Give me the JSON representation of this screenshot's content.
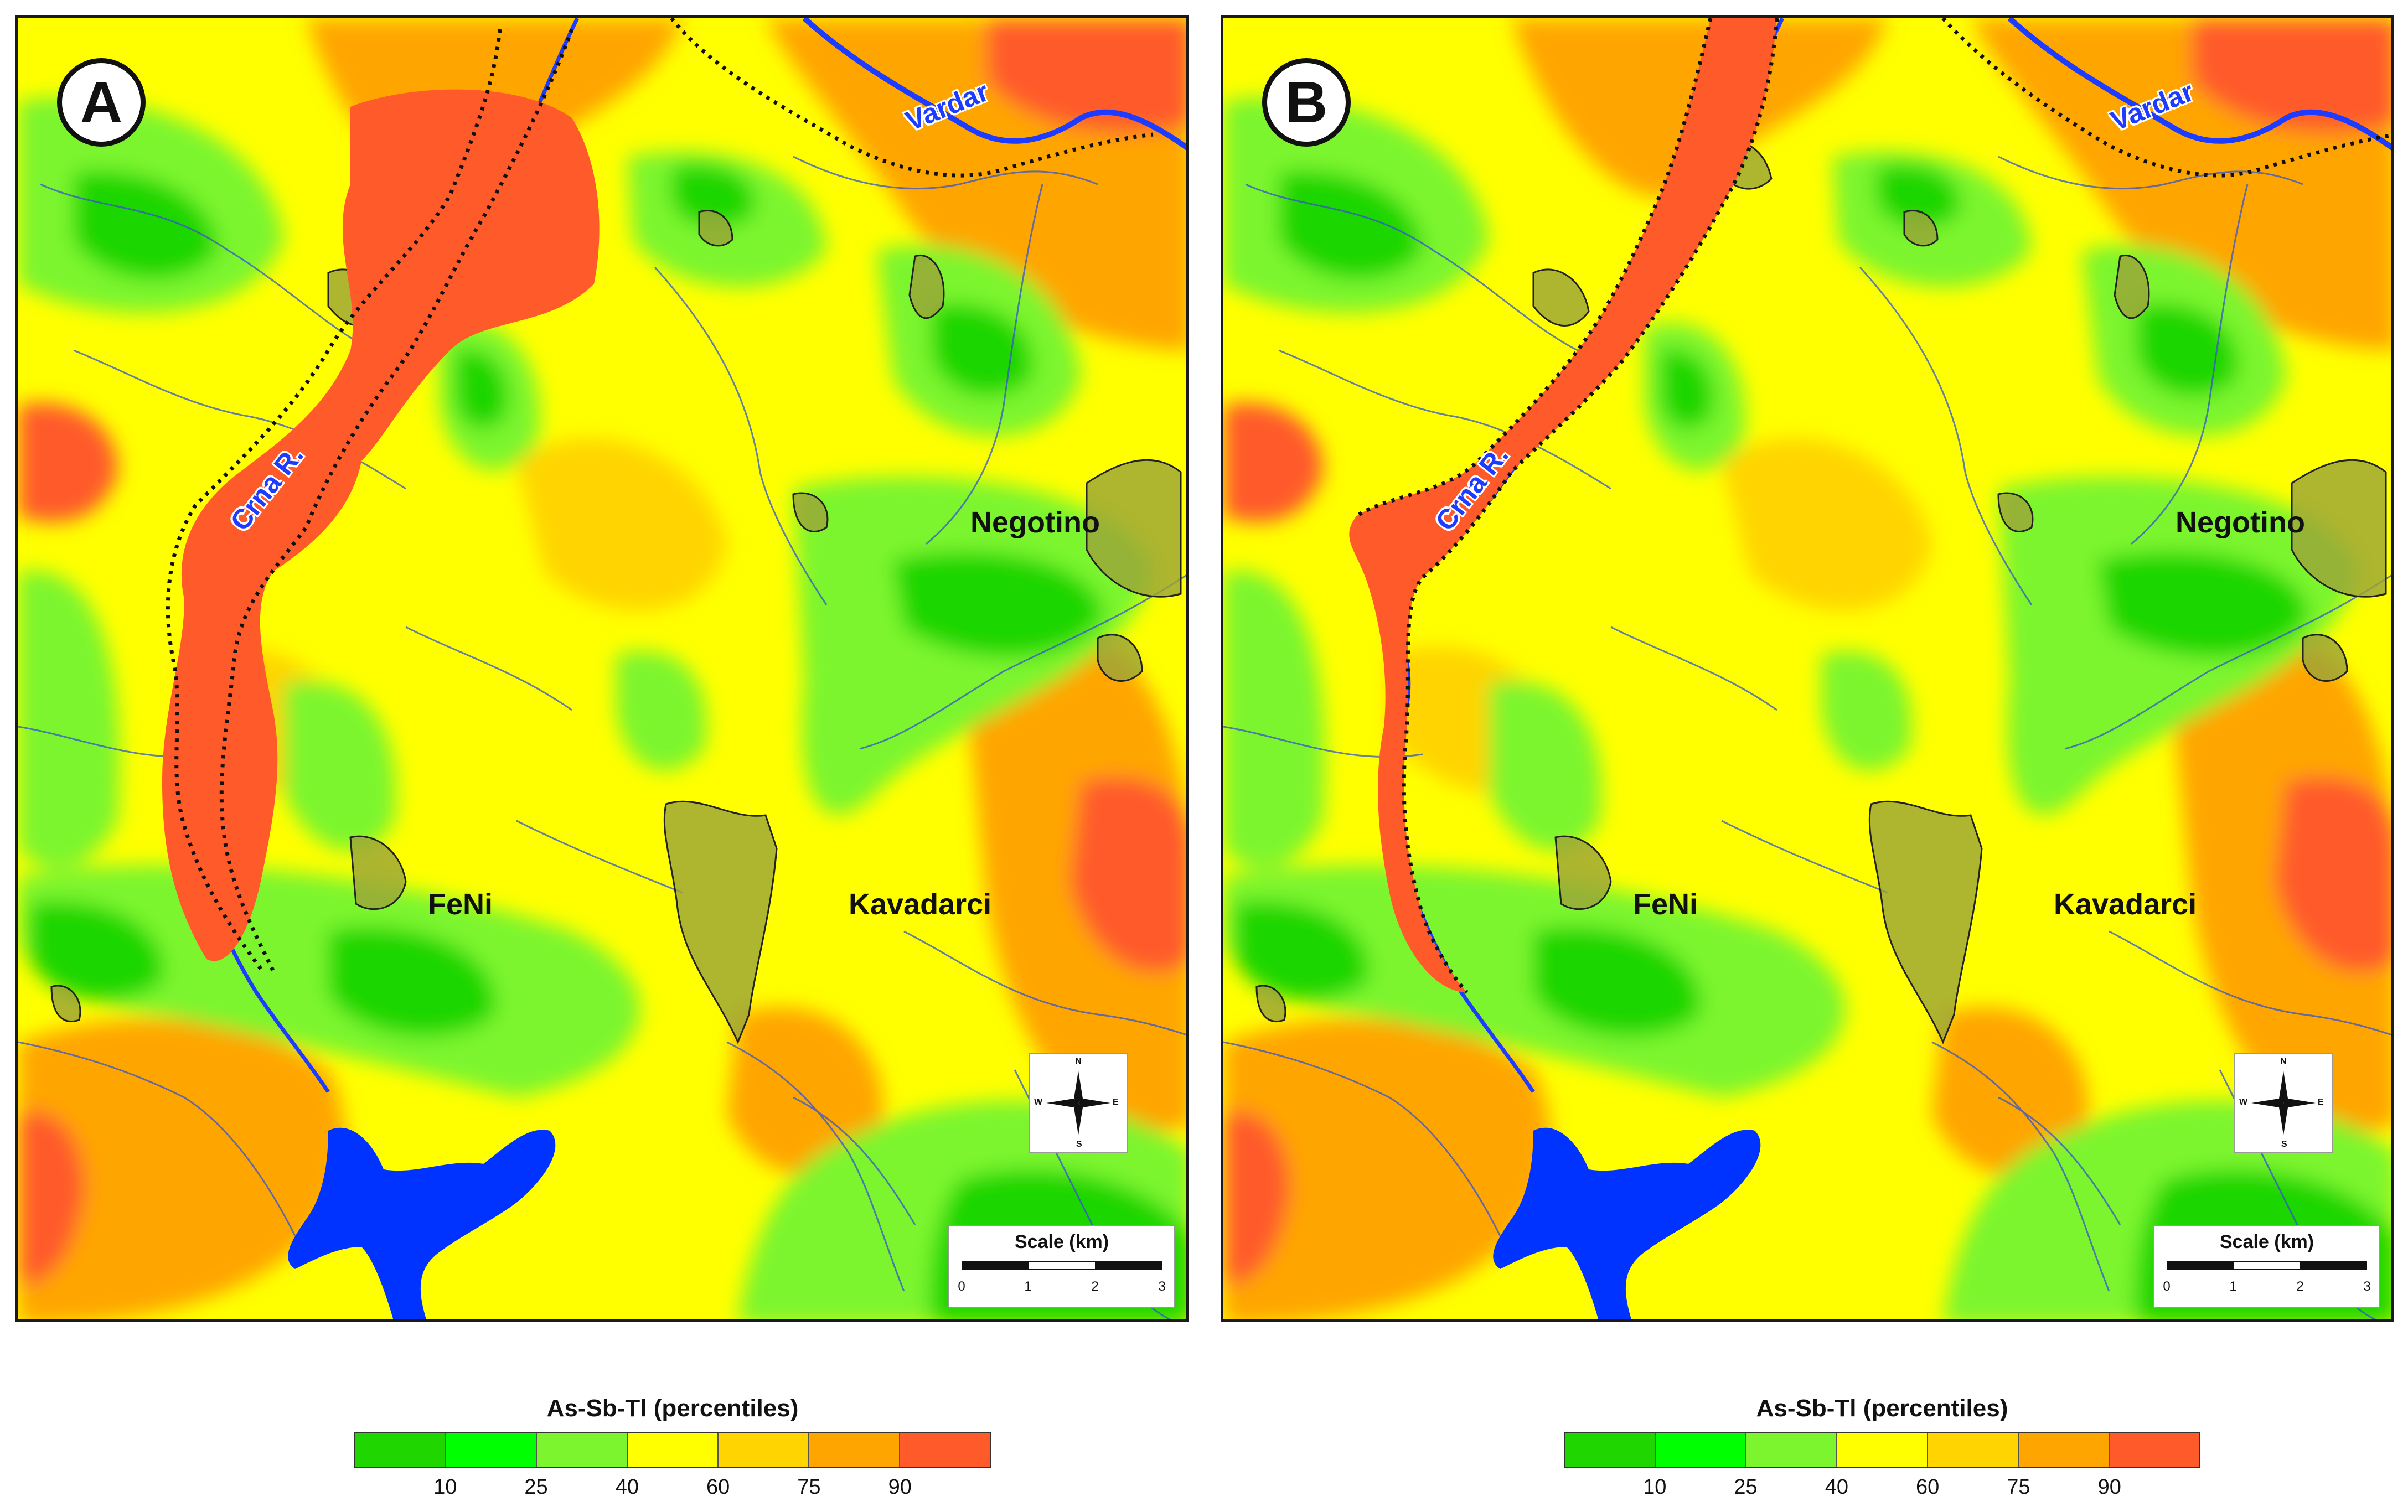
{
  "panels": [
    {
      "label": "A",
      "towns": {
        "negotino": "Negotino",
        "kavadarci": "Kavadarci",
        "feni": "FeNi"
      },
      "rivers": {
        "vardar": "Vardar",
        "crna": "Crna R."
      }
    },
    {
      "label": "B",
      "towns": {
        "negotino": "Negotino",
        "kavadarci": "Kavadarci",
        "feni": "FeNi"
      },
      "rivers": {
        "vardar": "Vardar",
        "crna": "Crna R."
      }
    }
  ],
  "compass": {
    "n": "N",
    "s": "S",
    "e": "E",
    "w": "W"
  },
  "scale": {
    "title": "Scale (km)",
    "ticks": [
      "0",
      "1",
      "2",
      "3"
    ]
  },
  "legend": {
    "title": "As-Sb-Tl (percentiles)",
    "colors": [
      "#1fd600",
      "#00ff00",
      "#7cf52e",
      "#ffff00",
      "#ffd400",
      "#ffa500",
      "#ff5a2a"
    ],
    "ticks": [
      "10",
      "25",
      "40",
      "60",
      "75",
      "90"
    ]
  },
  "colors": {
    "river": "#1e3cff",
    "lake": "#0033ff",
    "urban": "#9aa23a"
  }
}
